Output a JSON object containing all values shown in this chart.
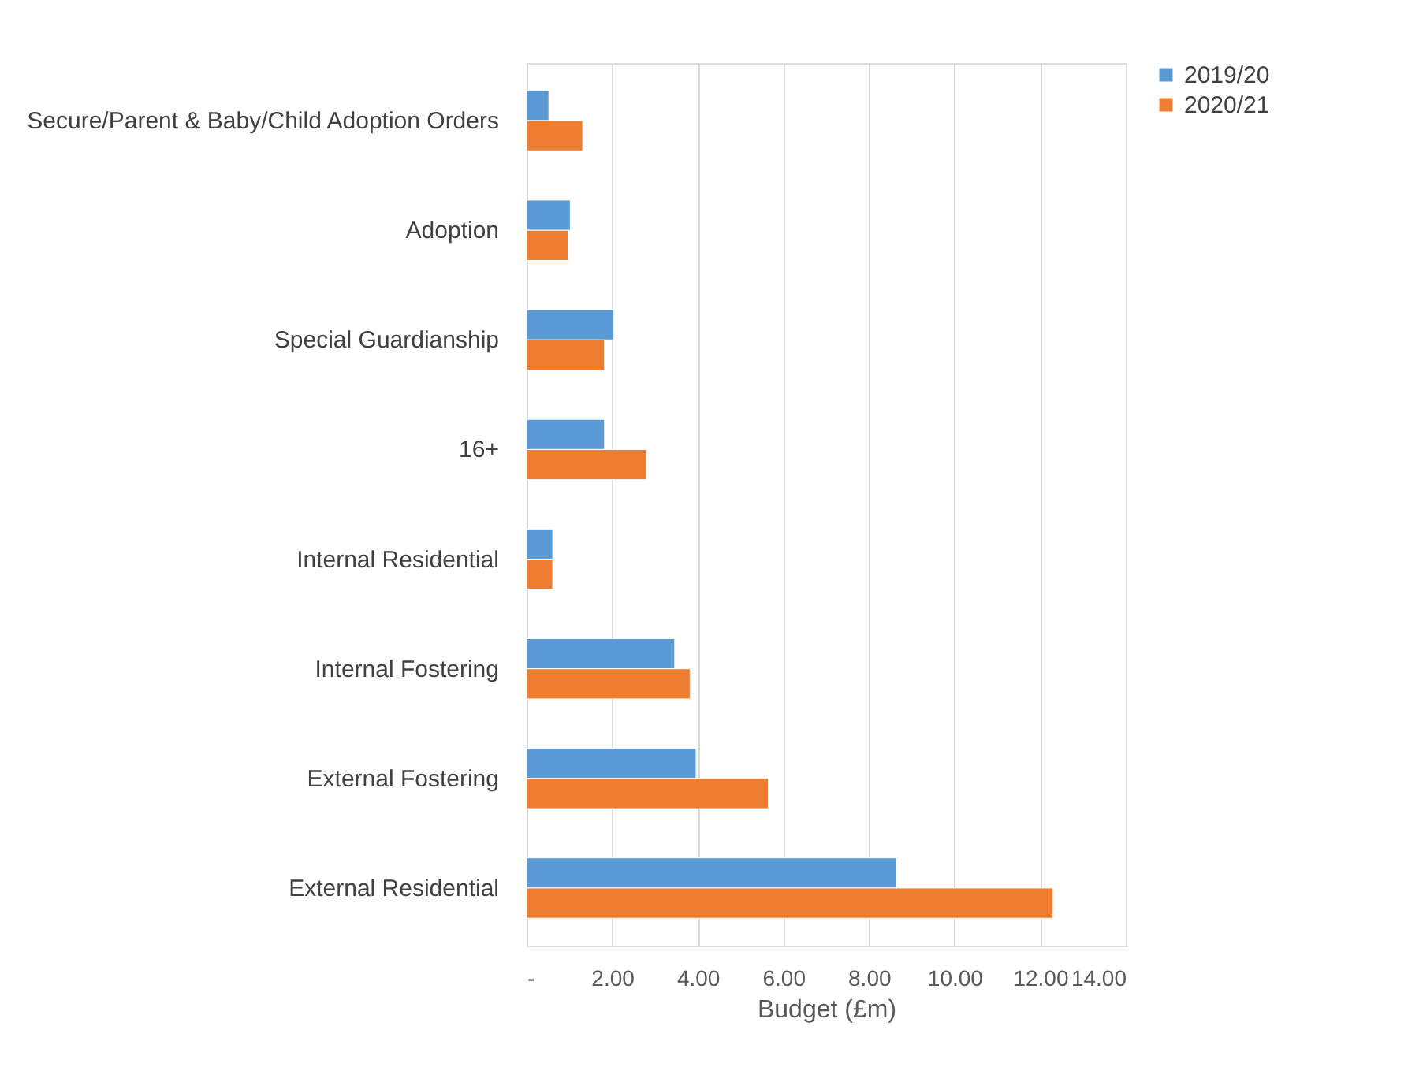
{
  "chart_data": {
    "type": "bar",
    "orientation": "horizontal",
    "xlabel": "Budget (£m)",
    "categories": [
      "Secure/Parent & Baby/Child Adoption Orders",
      "Adoption",
      "Special Guardianship",
      "16+",
      "Internal Residential",
      "Internal Fostering",
      "External Fostering",
      "External Residential"
    ],
    "series": [
      {
        "name": "2019/20",
        "color": "#5b9bd5",
        "values": [
          0.52,
          1.02,
          2.04,
          1.82,
          0.61,
          3.46,
          3.96,
          8.64
        ]
      },
      {
        "name": "2020/21",
        "color": "#ed7d31",
        "values": [
          1.31,
          0.97,
          1.82,
          2.8,
          0.61,
          3.82,
          5.65,
          12.3
        ]
      }
    ],
    "xlim": [
      0,
      14
    ],
    "xticks": [
      {
        "value": 0,
        "label": "-"
      },
      {
        "value": 2,
        "label": "2.00"
      },
      {
        "value": 4,
        "label": "4.00"
      },
      {
        "value": 6,
        "label": "6.00"
      },
      {
        "value": 8,
        "label": "8.00"
      },
      {
        "value": 10,
        "label": "10.00"
      },
      {
        "value": 12,
        "label": "12.00"
      },
      {
        "value": 14,
        "label": "14.00"
      }
    ],
    "grid": "x",
    "legend": "right"
  }
}
